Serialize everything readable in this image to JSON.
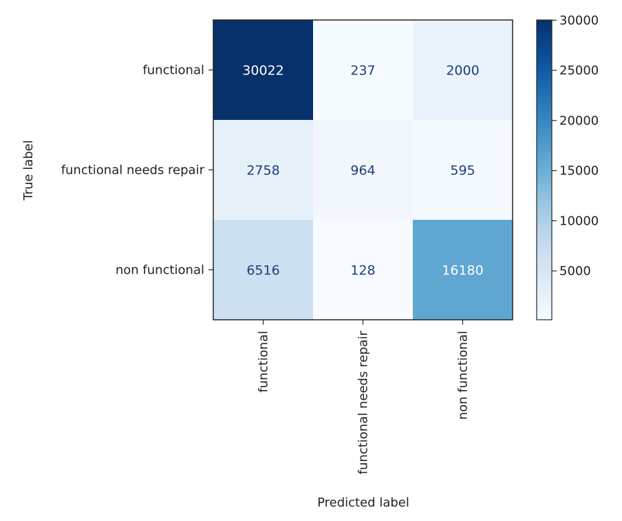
{
  "chart_data": {
    "type": "heatmap",
    "title": "",
    "xlabel": "Predicted label",
    "ylabel": "True label",
    "x_categories": [
      "functional",
      "functional needs repair",
      "non functional"
    ],
    "y_categories": [
      "functional",
      "functional needs repair",
      "non functional"
    ],
    "values": [
      [
        30022,
        237,
        2000
      ],
      [
        2758,
        964,
        595
      ],
      [
        6516,
        128,
        16180
      ]
    ],
    "colormap": "Blues",
    "color_range": [
      128,
      30022
    ],
    "colorbar_ticks": [
      5000,
      10000,
      15000,
      20000,
      25000,
      30000
    ],
    "grid": false,
    "legend": "colorbar-right"
  }
}
